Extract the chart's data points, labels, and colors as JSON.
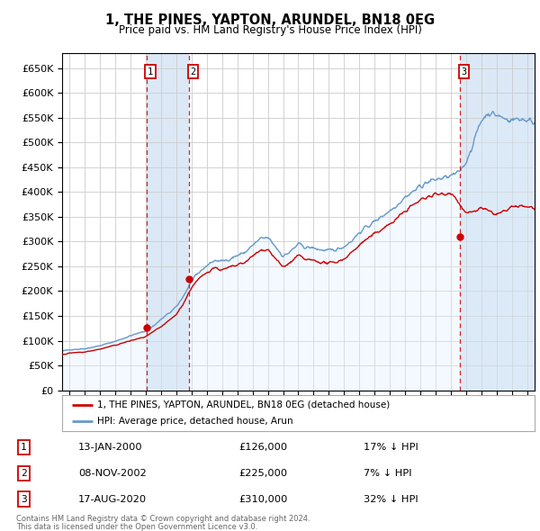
{
  "title": "1, THE PINES, YAPTON, ARUNDEL, BN18 0EG",
  "subtitle": "Price paid vs. HM Land Registry's House Price Index (HPI)",
  "legend_label_red": "1, THE PINES, YAPTON, ARUNDEL, BN18 0EG (detached house)",
  "legend_label_blue": "HPI: Average price, detached house, Arun",
  "footer_line1": "Contains HM Land Registry data © Crown copyright and database right 2024.",
  "footer_line2": "This data is licensed under the Open Government Licence v3.0.",
  "transactions": [
    {
      "num": 1,
      "date": "13-JAN-2000",
      "price": 126000,
      "pct": "17%",
      "direction": "↓",
      "year_x": 2000.04
    },
    {
      "num": 2,
      "date": "08-NOV-2002",
      "price": 225000,
      "pct": "7%",
      "direction": "↓",
      "year_x": 2002.85
    },
    {
      "num": 3,
      "date": "17-AUG-2020",
      "price": 310000,
      "pct": "32%",
      "direction": "↓",
      "year_x": 2020.62
    }
  ],
  "transaction_prices": [
    126000,
    225000,
    310000
  ],
  "background_color": "#ffffff",
  "grid_color": "#cccccc",
  "red_color": "#cc0000",
  "blue_color": "#6699cc",
  "blue_fill_color": "#ddeeff",
  "transaction_shade_color": "#dce8f5",
  "ylim": [
    0,
    680000
  ],
  "yticks": [
    0,
    50000,
    100000,
    150000,
    200000,
    250000,
    300000,
    350000,
    400000,
    450000,
    500000,
    550000,
    600000,
    650000
  ],
  "xlim_start": 1994.5,
  "xlim_end": 2025.5,
  "hpi_anchors": [
    [
      1994.5,
      79000
    ],
    [
      1995,
      82000
    ],
    [
      1996,
      84000
    ],
    [
      1997,
      90000
    ],
    [
      1998,
      99000
    ],
    [
      1999,
      110000
    ],
    [
      2000,
      120000
    ],
    [
      2000.5,
      130000
    ],
    [
      2001,
      143000
    ],
    [
      2001.5,
      155000
    ],
    [
      2002,
      168000
    ],
    [
      2002.5,
      192000
    ],
    [
      2003,
      220000
    ],
    [
      2003.5,
      238000
    ],
    [
      2004,
      252000
    ],
    [
      2004.5,
      262000
    ],
    [
      2005,
      260000
    ],
    [
      2005.5,
      265000
    ],
    [
      2006,
      272000
    ],
    [
      2006.5,
      278000
    ],
    [
      2007,
      292000
    ],
    [
      2007.5,
      305000
    ],
    [
      2008,
      308000
    ],
    [
      2008.5,
      290000
    ],
    [
      2009,
      270000
    ],
    [
      2009.5,
      280000
    ],
    [
      2010,
      295000
    ],
    [
      2010.5,
      288000
    ],
    [
      2011,
      287000
    ],
    [
      2011.5,
      283000
    ],
    [
      2012,
      281000
    ],
    [
      2012.5,
      284000
    ],
    [
      2013,
      290000
    ],
    [
      2013.5,
      302000
    ],
    [
      2014,
      318000
    ],
    [
      2014.5,
      330000
    ],
    [
      2015,
      340000
    ],
    [
      2015.5,
      352000
    ],
    [
      2016,
      362000
    ],
    [
      2016.5,
      375000
    ],
    [
      2017,
      390000
    ],
    [
      2017.5,
      400000
    ],
    [
      2018,
      412000
    ],
    [
      2018.5,
      420000
    ],
    [
      2019,
      425000
    ],
    [
      2019.5,
      428000
    ],
    [
      2020,
      432000
    ],
    [
      2020.5,
      438000
    ],
    [
      2021,
      460000
    ],
    [
      2021.5,
      500000
    ],
    [
      2022,
      545000
    ],
    [
      2022.5,
      560000
    ],
    [
      2023,
      555000
    ],
    [
      2023.5,
      548000
    ],
    [
      2024,
      545000
    ],
    [
      2024.5,
      548000
    ],
    [
      2025,
      545000
    ],
    [
      2025.5,
      540000
    ]
  ],
  "red_anchors": [
    [
      1994.5,
      72000
    ],
    [
      1995,
      75000
    ],
    [
      1996,
      77000
    ],
    [
      1997,
      83000
    ],
    [
      1998,
      91000
    ],
    [
      1999,
      100000
    ],
    [
      2000,
      108000
    ],
    [
      2000.5,
      118000
    ],
    [
      2001,
      128000
    ],
    [
      2001.5,
      140000
    ],
    [
      2002,
      153000
    ],
    [
      2002.5,
      177000
    ],
    [
      2003,
      208000
    ],
    [
      2003.5,
      225000
    ],
    [
      2004,
      238000
    ],
    [
      2004.5,
      248000
    ],
    [
      2005,
      242000
    ],
    [
      2005.5,
      248000
    ],
    [
      2006,
      252000
    ],
    [
      2006.5,
      258000
    ],
    [
      2007,
      270000
    ],
    [
      2007.5,
      282000
    ],
    [
      2008,
      285000
    ],
    [
      2008.5,
      265000
    ],
    [
      2009,
      248000
    ],
    [
      2009.5,
      258000
    ],
    [
      2010,
      272000
    ],
    [
      2010.5,
      263000
    ],
    [
      2011,
      262000
    ],
    [
      2011.5,
      258000
    ],
    [
      2012,
      256000
    ],
    [
      2012.5,
      259000
    ],
    [
      2013,
      265000
    ],
    [
      2013.5,
      278000
    ],
    [
      2014,
      293000
    ],
    [
      2014.5,
      305000
    ],
    [
      2015,
      315000
    ],
    [
      2015.5,
      326000
    ],
    [
      2016,
      335000
    ],
    [
      2016.5,
      347000
    ],
    [
      2017,
      362000
    ],
    [
      2017.5,
      373000
    ],
    [
      2018,
      383000
    ],
    [
      2018.5,
      391000
    ],
    [
      2019,
      395000
    ],
    [
      2019.5,
      396000
    ],
    [
      2020,
      400000
    ],
    [
      2020.5,
      380000
    ],
    [
      2021,
      355000
    ],
    [
      2021.5,
      360000
    ],
    [
      2022,
      368000
    ],
    [
      2022.5,
      360000
    ],
    [
      2023,
      355000
    ],
    [
      2023.5,
      360000
    ],
    [
      2024,
      368000
    ],
    [
      2024.5,
      372000
    ],
    [
      2025,
      370000
    ],
    [
      2025.5,
      368000
    ]
  ]
}
